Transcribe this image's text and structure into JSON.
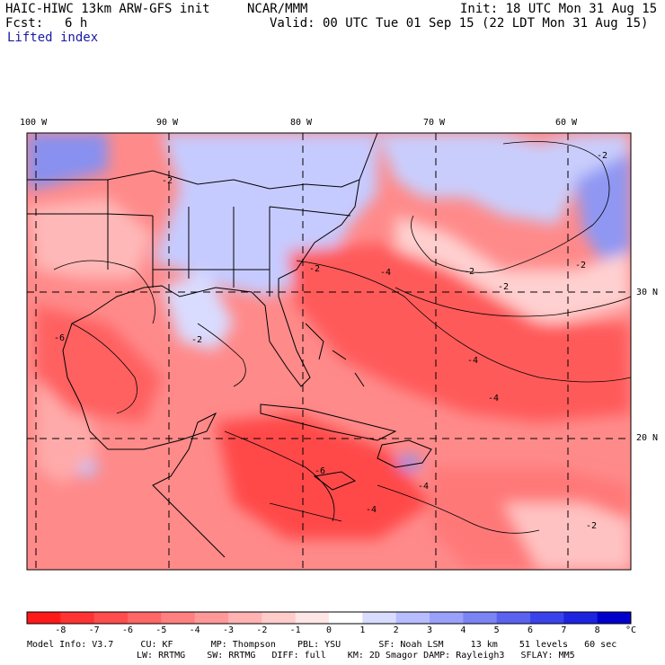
{
  "header": {
    "title_left": "HAIC-HIWC 13km ARW-GFS init",
    "org": "NCAR/MMM",
    "init": "Init: 18 UTC Mon 31 Aug 15",
    "fcst_label": "Fcst:",
    "fcst_value": "6 h",
    "valid": "Valid: 00 UTC Tue 01 Sep 15 (22 LDT Mon 31 Aug 15)",
    "field": "Lifted index"
  },
  "map": {
    "lon_labels": [
      "100 W",
      "90 W",
      "80 W",
      "70 W",
      "60 W"
    ],
    "lat_labels": [
      "30 N",
      "20 N"
    ],
    "contour_labels": [
      "-2",
      "-2",
      "-2",
      "-2",
      "-2",
      "-2",
      "-4",
      "-4",
      "-4",
      "-4",
      "-6",
      "-6",
      "-2",
      "-4",
      "-2"
    ],
    "colors": {
      "deep_red": "#ff2020",
      "mid_red": "#ff6a6a",
      "light_red": "#ffb0b0",
      "pale_red": "#ffd6d6",
      "pale_blue": "#cfd4ff",
      "light_blue": "#a7adf5",
      "mid_blue": "#7c85ef"
    }
  },
  "colorbar": {
    "ticks": [
      "-8",
      "-7",
      "-6",
      "-5",
      "-4",
      "-3",
      "-2",
      "-1",
      "0",
      "1",
      "2",
      "3",
      "4",
      "5",
      "6",
      "7",
      "8"
    ],
    "unit": "°C",
    "colors": [
      "#ff1a1a",
      "#ff3333",
      "#ff4d4d",
      "#ff6666",
      "#ff8080",
      "#ff9999",
      "#ffb3b3",
      "#ffcccc",
      "#ffe6e6",
      "#ffffff",
      "#d9dcff",
      "#b8bdff",
      "#9aa1fb",
      "#7b84f5",
      "#5a63f0",
      "#3a43eb",
      "#1d24e0",
      "#0000cc"
    ]
  },
  "footer": {
    "line1": "Model Info: V3.7     CU: KF       MP: Thompson    PBL: YSU       SF: Noah LSM     13 km    51 levels   60 sec",
    "line2": "LW: RRTMG    SW: RRTMG   DIFF: full    KM: 2D Smagor DAMP: Rayleigh3   SFLAY: MM5"
  }
}
